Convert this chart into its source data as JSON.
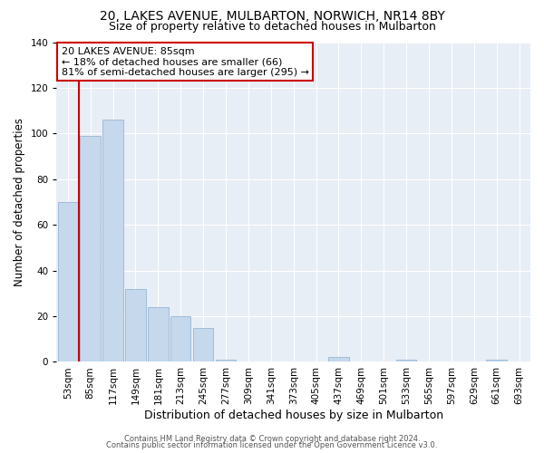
{
  "title": "20, LAKES AVENUE, MULBARTON, NORWICH, NR14 8BY",
  "subtitle": "Size of property relative to detached houses in Mulbarton",
  "xlabel": "Distribution of detached houses by size in Mulbarton",
  "ylabel": "Number of detached properties",
  "bar_labels": [
    "53sqm",
    "85sqm",
    "117sqm",
    "149sqm",
    "181sqm",
    "213sqm",
    "245sqm",
    "277sqm",
    "309sqm",
    "341sqm",
    "373sqm",
    "405sqm",
    "437sqm",
    "469sqm",
    "501sqm",
    "533sqm",
    "565sqm",
    "597sqm",
    "629sqm",
    "661sqm",
    "693sqm"
  ],
  "bar_values": [
    70,
    99,
    106,
    32,
    24,
    20,
    15,
    1,
    0,
    0,
    0,
    0,
    2,
    0,
    0,
    1,
    0,
    0,
    0,
    1,
    0
  ],
  "bar_color": "#c5d8ec",
  "bar_edge_color": "#a0bcd8",
  "plot_bg_color": "#e8eef5",
  "marker_bar_index": 1,
  "marker_color": "#cc0000",
  "ylim": [
    0,
    140
  ],
  "yticks": [
    0,
    20,
    40,
    60,
    80,
    100,
    120,
    140
  ],
  "annotation_title": "20 LAKES AVENUE: 85sqm",
  "annotation_line1": "← 18% of detached houses are smaller (66)",
  "annotation_line2": "81% of semi-detached houses are larger (295) →",
  "footer_line1": "Contains HM Land Registry data © Crown copyright and database right 2024.",
  "footer_line2": "Contains public sector information licensed under the Open Government Licence v3.0.",
  "title_fontsize": 10,
  "subtitle_fontsize": 9,
  "tick_fontsize": 7.5,
  "ylabel_fontsize": 8.5,
  "xlabel_fontsize": 9,
  "annotation_fontsize": 8,
  "footer_fontsize": 6
}
